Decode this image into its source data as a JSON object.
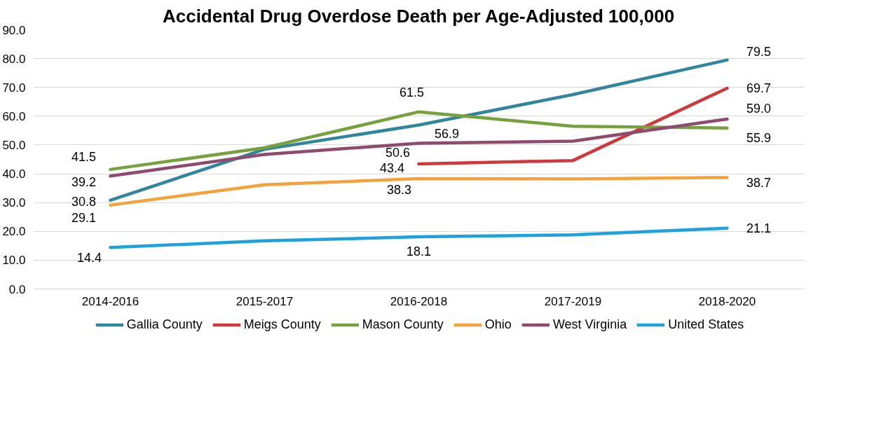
{
  "chart_data": {
    "type": "line",
    "title": "Accidental Drug Overdose Death per Age-Adjusted 100,000",
    "categories": [
      "2014-2016",
      "2015-2017",
      "2016-2018",
      "2017-2019",
      "2018-2020"
    ],
    "series": [
      {
        "name": "Gallia County",
        "color": "#31859c",
        "values": [
          30.8,
          48.5,
          56.9,
          67.5,
          79.5
        ],
        "value_labels": [
          "30.8",
          null,
          "56.9",
          null,
          "79.5"
        ]
      },
      {
        "name": "Meigs County",
        "color": "#d0393b",
        "values": [
          null,
          null,
          43.4,
          44.6,
          69.7
        ],
        "value_labels": [
          null,
          null,
          "43.4",
          null,
          "69.7"
        ]
      },
      {
        "name": "Mason County",
        "color": "#77a03f",
        "values": [
          41.5,
          49.0,
          61.5,
          56.5,
          55.9
        ],
        "value_labels": [
          "41.5",
          null,
          "61.5",
          null,
          "55.9"
        ]
      },
      {
        "name": "Ohio",
        "color": "#f4a23c",
        "values": [
          29.1,
          36.2,
          38.3,
          38.2,
          38.7
        ],
        "value_labels": [
          "29.1",
          null,
          "38.3",
          null,
          "38.7"
        ]
      },
      {
        "name": "West Virginia",
        "color": "#8e4b6e",
        "values": [
          39.2,
          46.7,
          50.6,
          51.3,
          59.0
        ],
        "value_labels": [
          "39.2",
          null,
          "50.6",
          null,
          "59.0"
        ]
      },
      {
        "name": "United States",
        "color": "#1ea2db",
        "values": [
          14.4,
          16.7,
          18.1,
          18.8,
          21.1
        ],
        "value_labels": [
          "14.4",
          null,
          "18.1",
          null,
          "21.1"
        ]
      }
    ],
    "ylim": [
      0,
      90
    ],
    "yticks": [
      {
        "value": 0,
        "label": "0.0"
      },
      {
        "value": 10,
        "label": "10.0"
      },
      {
        "value": 20,
        "label": "20.0"
      },
      {
        "value": 30,
        "label": "30.0"
      },
      {
        "value": 40,
        "label": "40.0"
      },
      {
        "value": 50,
        "label": "50.0"
      },
      {
        "value": 60,
        "label": "60.0"
      },
      {
        "value": 70,
        "label": "70.0"
      },
      {
        "value": 80,
        "label": "80.0"
      },
      {
        "value": 90,
        "label": "90.0"
      }
    ],
    "grid": "y",
    "legend": "bottom",
    "marker": "none",
    "line_style": "solid"
  }
}
